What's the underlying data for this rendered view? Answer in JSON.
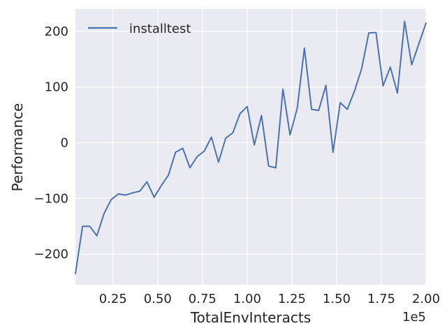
{
  "chart_data": {
    "type": "line",
    "xlabel": "TotalEnvInteracts",
    "ylabel": "Performance",
    "x_offset_label": "1e5",
    "xlim": [
      4000,
      200000
    ],
    "ylim": [
      -255,
      240
    ],
    "x_ticks": [
      25000,
      50000,
      75000,
      100000,
      125000,
      150000,
      175000,
      200000
    ],
    "x_tick_labels": [
      "0.25",
      "0.50",
      "0.75",
      "1.00",
      "1.25",
      "1.50",
      "1.75",
      "2.00"
    ],
    "y_ticks": [
      -200,
      -100,
      0,
      100,
      200
    ],
    "y_tick_labels": [
      "−200",
      "−100",
      "0",
      "100",
      "200"
    ],
    "grid": true,
    "legend_position": "upper-left",
    "colors": {
      "background": "#eaeaf2",
      "grid": "#ffffff",
      "line": "#4c72b0"
    },
    "series": [
      {
        "name": "installtest",
        "x": [
          4000,
          8000,
          12000,
          16000,
          20000,
          24000,
          28000,
          32000,
          36000,
          40000,
          44000,
          48000,
          52000,
          56000,
          60000,
          64000,
          68000,
          72000,
          76000,
          80000,
          84000,
          88000,
          92000,
          96000,
          100000,
          104000,
          108000,
          112000,
          116000,
          120000,
          124000,
          128000,
          132000,
          136000,
          140000,
          144000,
          148000,
          152000,
          156000,
          160000,
          164000,
          168000,
          172000,
          176000,
          180000,
          184000,
          188000,
          192000,
          196000,
          200000
        ],
        "values": [
          -235,
          -150,
          -150,
          -167,
          -127,
          -102,
          -92,
          -94,
          -90,
          -87,
          -70,
          -98,
          -77,
          -58,
          -17,
          -10,
          -45,
          -25,
          -15,
          10,
          -35,
          8,
          18,
          52,
          65,
          -4,
          49,
          -42,
          -45,
          96,
          14,
          62,
          170,
          60,
          58,
          103,
          -17,
          72,
          60,
          93,
          133,
          197,
          198,
          102,
          136,
          89,
          218,
          140,
          178,
          215
        ]
      }
    ]
  }
}
